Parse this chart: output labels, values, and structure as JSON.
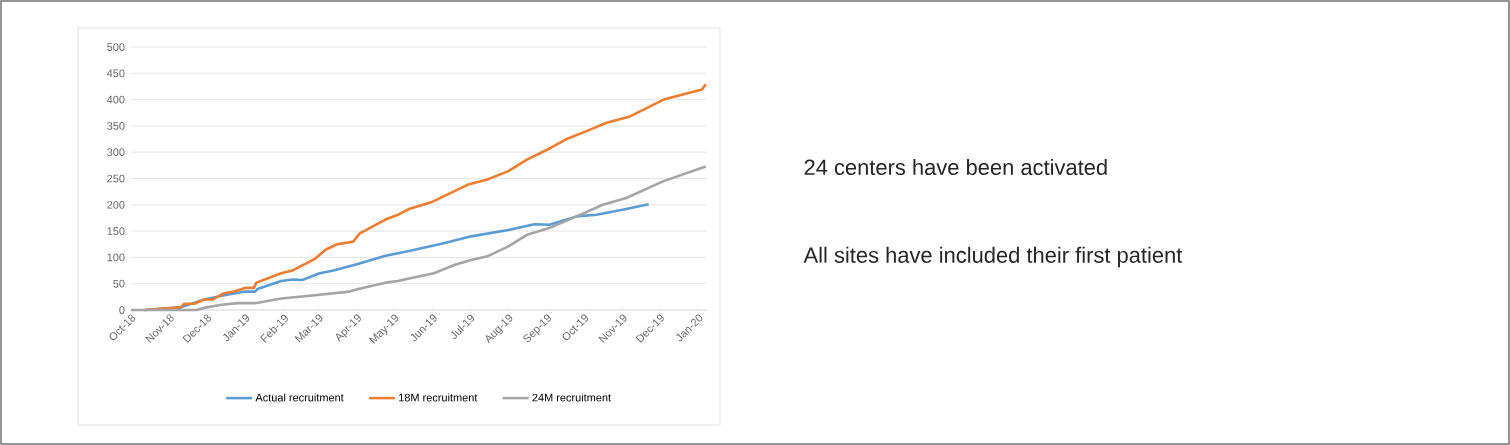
{
  "chart_data": {
    "type": "line",
    "annotations": [
      "24 centers have been activated",
      "All sites have included their first patient"
    ],
    "series": [
      {
        "name": "Actual recruitment",
        "color": "#5b9bd5",
        "x": [
          "2018-10-12",
          "2018-11-10",
          "2018-11-29",
          "2018-12-15",
          "2019-01-01",
          "2019-01-09",
          "2019-01-11",
          "2019-01-30",
          "2019-02-08",
          "2019-02-16",
          "2019-03-02",
          "2019-03-13",
          "2019-04-01",
          "2019-04-24",
          "2019-05-13",
          "2019-05-30",
          "2019-06-10",
          "2019-07-02",
          "2019-08-01",
          "2019-08-22",
          "2019-09-03",
          "2019-09-25",
          "2019-10-11",
          "2019-11-02",
          "2019-11-22"
        ],
        "values": [
          0,
          5,
          20,
          28,
          35,
          35,
          40,
          55,
          58,
          57,
          70,
          75,
          87,
          103,
          112,
          121,
          127,
          140,
          152,
          163,
          162,
          178,
          181,
          191,
          201
        ]
      },
      {
        "name": "18M recruitment",
        "color": "#ed7d31",
        "x": [
          "2018-10-12",
          "2018-11-10",
          "2018-11-13",
          "2018-11-21",
          "2018-11-29",
          "2018-12-06",
          "2018-12-15",
          "2018-12-23",
          "2019-01-01",
          "2019-01-08",
          "2019-01-10",
          "2019-01-30",
          "2019-02-08",
          "2019-02-16",
          "2019-02-26",
          "2019-03-07",
          "2019-03-16",
          "2019-03-29",
          "2019-04-03",
          "2019-04-13",
          "2019-04-24",
          "2019-05-03",
          "2019-05-13",
          "2019-06-01",
          "2019-06-29",
          "2019-07-15",
          "2019-08-01",
          "2019-08-16",
          "2019-09-04",
          "2019-09-16",
          "2019-10-03",
          "2019-10-19",
          "2019-11-07",
          "2019-12-04",
          "2020-01-04",
          "2020-01-07"
        ],
        "values": [
          0,
          5,
          12,
          12,
          20,
          20,
          32,
          35,
          42,
          42,
          52,
          70,
          75,
          85,
          97,
          115,
          125,
          130,
          145,
          158,
          172,
          180,
          192,
          206,
          238,
          248,
          264,
          286,
          308,
          324,
          340,
          356,
          368,
          400,
          419,
          429
        ]
      },
      {
        "name": "24M recruitment",
        "color": "#a5a5a5",
        "x": [
          "2018-10-01",
          "2018-11-23",
          "2018-12-01",
          "2018-12-13",
          "2018-12-26",
          "2019-01-09",
          "2019-01-30",
          "2019-02-26",
          "2019-03-26",
          "2019-04-02",
          "2019-04-24",
          "2019-05-04",
          "2019-05-13",
          "2019-06-02",
          "2019-06-19",
          "2019-07-02",
          "2019-07-15",
          "2019-08-01",
          "2019-08-16",
          "2019-09-03",
          "2019-09-25",
          "2019-10-16",
          "2019-11-04",
          "2019-12-04",
          "2020-01-07"
        ],
        "values": [
          0,
          0,
          5,
          10,
          13,
          13,
          22,
          28,
          35,
          40,
          52,
          55,
          60,
          70,
          86,
          95,
          102,
          121,
          143,
          156,
          178,
          200,
          213,
          245,
          273
        ]
      }
    ],
    "xlim": [
      "2018-10-01",
      "2020-01-08"
    ],
    "xticks": [
      {
        "value": "2018-10",
        "label": "Oct-18"
      },
      {
        "value": "2018-11",
        "label": "Nov-18"
      },
      {
        "value": "2018-12",
        "label": "Dec-18"
      },
      {
        "value": "2019-01",
        "label": "Jan-19"
      },
      {
        "value": "2019-02",
        "label": "Feb-19"
      },
      {
        "value": "2019-03",
        "label": "Mar-19"
      },
      {
        "value": "2019-04",
        "label": "Apr-19"
      },
      {
        "value": "2019-05",
        "label": "May-19"
      },
      {
        "value": "2019-06",
        "label": "Jun-19"
      },
      {
        "value": "2019-07",
        "label": "Jul-19"
      },
      {
        "value": "2019-08",
        "label": "Aug-19"
      },
      {
        "value": "2019-09",
        "label": "Sep-19"
      },
      {
        "value": "2019-10",
        "label": "Oct-19"
      },
      {
        "value": "2019-11",
        "label": "Nov-19"
      },
      {
        "value": "2019-12",
        "label": "Dec-19"
      },
      {
        "value": "2020-01",
        "label": "Jan-20"
      }
    ],
    "ylim": [
      0,
      500
    ],
    "yticks": [
      0,
      50,
      100,
      150,
      200,
      250,
      300,
      350,
      400,
      450,
      500
    ],
    "grid": "y",
    "legend": "bottom"
  }
}
